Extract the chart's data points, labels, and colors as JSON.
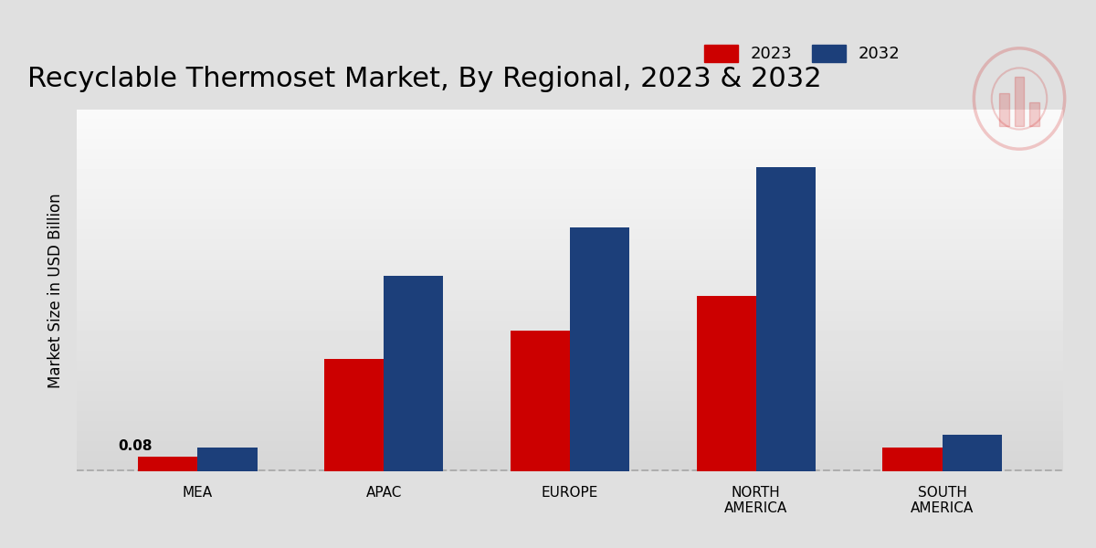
{
  "title": "Recyclable Thermoset Market, By Regional, 2023 & 2032",
  "ylabel": "Market Size in USD Billion",
  "categories": [
    "MEA",
    "APAC",
    "EUROPE",
    "NORTH\nAMERICA",
    "SOUTH\nAMERICA"
  ],
  "values_2023": [
    0.08,
    0.62,
    0.78,
    0.97,
    0.13
  ],
  "values_2032": [
    0.13,
    1.08,
    1.35,
    1.68,
    0.2
  ],
  "color_2023": "#cc0000",
  "color_2032": "#1c3f7a",
  "bar_width": 0.32,
  "annotation_text": "0.08",
  "ylim_max": 2.0,
  "xlim_min": -0.65,
  "xlim_max": 4.65,
  "legend_2023": "2023",
  "legend_2032": "2032",
  "title_fontsize": 22,
  "axis_label_fontsize": 12,
  "tick_fontsize": 11,
  "legend_fontsize": 13,
  "annotation_fontsize": 11,
  "dashed_line_color": "#aaaaaa",
  "bg_top": "#f5f5f5",
  "bg_bottom": "#d8d8d8"
}
